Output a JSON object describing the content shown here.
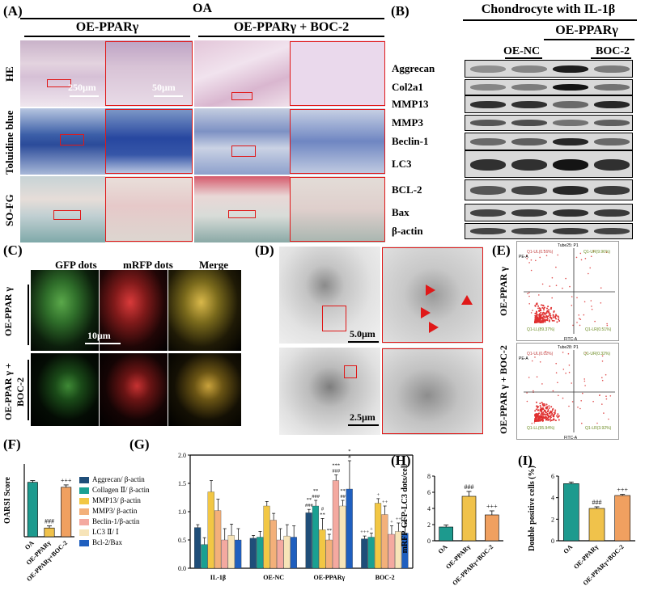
{
  "panels": {
    "A": {
      "label": "(A)",
      "group": "OA",
      "col1": "OE-PPARγ",
      "col2": "OE-PPARγ + BOC-2",
      "rows": [
        "HE",
        "Toluidine blue",
        "SO-FG"
      ],
      "scale1": "250μm",
      "scale2": "50μm"
    },
    "B": {
      "label": "(B)",
      "title": "Chondrocyte with IL-1β",
      "group": "OE-PPARγ",
      "sub1": "OE-NC",
      "sub2": "BOC-2",
      "proteins": [
        "Aggrecan",
        "Col2a1",
        "MMP13",
        "MMP3",
        "Beclin-1",
        "LC3",
        "BCL-2",
        "Bax",
        "β-actin"
      ]
    },
    "C": {
      "label": "(C)",
      "cols": [
        "GFP dots",
        "mRFP dots",
        "Merge"
      ],
      "row1": "OE-PPAR γ",
      "row2": "OE-PPAR γ + BOC-2",
      "scale": "10μm"
    },
    "D": {
      "label": "(D)",
      "scale1": "5.0μm",
      "scale2": "2.5μm"
    },
    "E": {
      "label": "(E)",
      "row1": "OE-PPAR γ",
      "row2": "OE-PPAR γ + BOC-2",
      "plot1": {
        "title": "Tube25: P1",
        "ul": "Q1-UL(0.16%)",
        "ur": "Q1-UR(9.96%)",
        "ll": "Q1-LL(89.37%)",
        "lr": "Q1-LR(0.51%)"
      },
      "plot2": {
        "title": "Tube28: P1",
        "ul": "Q1-UL(0.02%)",
        "ur": "Q1-UR(0.32%)",
        "ll": "Q1-LL(95.94%)",
        "lr": "Q1-LR(3.92%)"
      },
      "xaxis": "FITC-A",
      "yaxis": "PE-A"
    },
    "F": {
      "label": "(F)"
    },
    "G": {
      "label": "(G)"
    },
    "H": {
      "label": "(H)"
    },
    "I": {
      "label": "(I)"
    }
  },
  "chart_data": [
    {
      "id": "F",
      "type": "bar",
      "ylabel": "OARSI Score",
      "categories": [
        "OA",
        "OE-PPARγ",
        "OE-PPARγ+BOC-2"
      ],
      "values": [
        18.7,
        3.0,
        17.0
      ],
      "errors": [
        0.6,
        0.7,
        0.8
      ],
      "colors": [
        "#1d9a8e",
        "#f0c24b",
        "#f0a060"
      ],
      "annotations": [
        "",
        "###",
        "+++"
      ],
      "ylim": [
        0,
        25
      ]
    },
    {
      "id": "G",
      "type": "bar",
      "categories": [
        "IL-1β",
        "OE-NC",
        "OE-PPARγ",
        "BOC-2"
      ],
      "yticks": [
        "0.0",
        "0.5",
        "1.0",
        "1.5",
        "2.0"
      ],
      "ylim": [
        0,
        2.0
      ],
      "series": [
        {
          "name": "Aggrecan/ β-actin",
          "color": "#1f4e79",
          "values": [
            0.72,
            0.53,
            0.98,
            0.52
          ],
          "errors": [
            0.05,
            0.05,
            0.06,
            0.05
          ]
        },
        {
          "name": "Collagen Ⅱ/ β-actin",
          "color": "#1aa092",
          "values": [
            0.42,
            0.55,
            1.1,
            0.55
          ],
          "errors": [
            0.12,
            0.1,
            0.1,
            0.07
          ]
        },
        {
          "name": "MMP13/ β-actin",
          "color": "#f2c744",
          "values": [
            1.35,
            1.1,
            0.68,
            1.15
          ],
          "errors": [
            0.2,
            0.08,
            0.2,
            0.08
          ]
        },
        {
          "name": "MMP3/ β-actin",
          "color": "#f3b07a",
          "values": [
            1.02,
            0.85,
            0.5,
            0.95
          ],
          "errors": [
            0.2,
            0.12,
            0.1,
            0.15
          ]
        },
        {
          "name": "Beclin-1/β-actin",
          "color": "#f4a9a0",
          "values": [
            0.5,
            0.5,
            1.55,
            0.6
          ],
          "errors": [
            0.2,
            0.2,
            0.1,
            0.15
          ]
        },
        {
          "name": "LC3 Ⅱ/ Ⅰ",
          "color": "#f7e4b8",
          "values": [
            0.58,
            0.57,
            1.1,
            0.65
          ],
          "errors": [
            0.2,
            0.2,
            0.1,
            0.15
          ]
        },
        {
          "name": "Bcl-2/Bax",
          "color": "#1f5fbf",
          "values": [
            0.5,
            0.55,
            1.4,
            0.62
          ],
          "errors": [
            0.2,
            0.2,
            0.5,
            0.2
          ]
        }
      ],
      "annotations": [
        {
          "group": 2,
          "series": 0,
          "text": "**\n###"
        },
        {
          "group": 2,
          "series": 1,
          "text": "**\n###"
        },
        {
          "group": 2,
          "series": 2,
          "text": "#\n**"
        },
        {
          "group": 2,
          "series": 3,
          "text": "**"
        },
        {
          "group": 2,
          "series": 4,
          "text": "***\n###"
        },
        {
          "group": 2,
          "series": 5,
          "text": "**\n##"
        },
        {
          "group": 2,
          "series": 6,
          "text": "*\n#"
        },
        {
          "group": 3,
          "series": 0,
          "text": "+++"
        },
        {
          "group": 3,
          "series": 1,
          "text": "+"
        },
        {
          "group": 3,
          "series": 2,
          "text": "+"
        },
        {
          "group": 3,
          "series": 3,
          "text": "++"
        },
        {
          "group": 3,
          "series": 4,
          "text": "+"
        },
        {
          "group": 3,
          "series": 5,
          "text": "++"
        },
        {
          "group": 3,
          "series": 6,
          "text": "+"
        }
      ]
    },
    {
      "id": "H",
      "type": "bar",
      "ylabel": "mRFP-GFP-LC3 dots/cell",
      "categories": [
        "OA",
        "OE-PPARγ",
        "OE-PPARγ+BOC-2"
      ],
      "values": [
        1.7,
        5.5,
        3.2
      ],
      "errors": [
        0.25,
        0.6,
        0.5
      ],
      "colors": [
        "#1d9a8e",
        "#f0c24b",
        "#f0a060"
      ],
      "annotations": [
        "",
        "###",
        "+++"
      ],
      "ylim": [
        0,
        8
      ],
      "yticks": [
        "0",
        "2",
        "4",
        "6",
        "8"
      ]
    },
    {
      "id": "I",
      "type": "bar",
      "ylabel": "Double positive cells (%)",
      "categories": [
        "OA",
        "OE-PPARγ",
        "OE-PPARγ+BOC-2"
      ],
      "values": [
        5.3,
        3.0,
        4.2
      ],
      "errors": [
        0.15,
        0.15,
        0.1
      ],
      "colors": [
        "#1d9a8e",
        "#f0c24b",
        "#f0a060"
      ],
      "annotations": [
        "",
        "###",
        "+++"
      ],
      "ylim": [
        0,
        6
      ],
      "yticks": [
        "0",
        "2",
        "4",
        "6"
      ]
    }
  ]
}
